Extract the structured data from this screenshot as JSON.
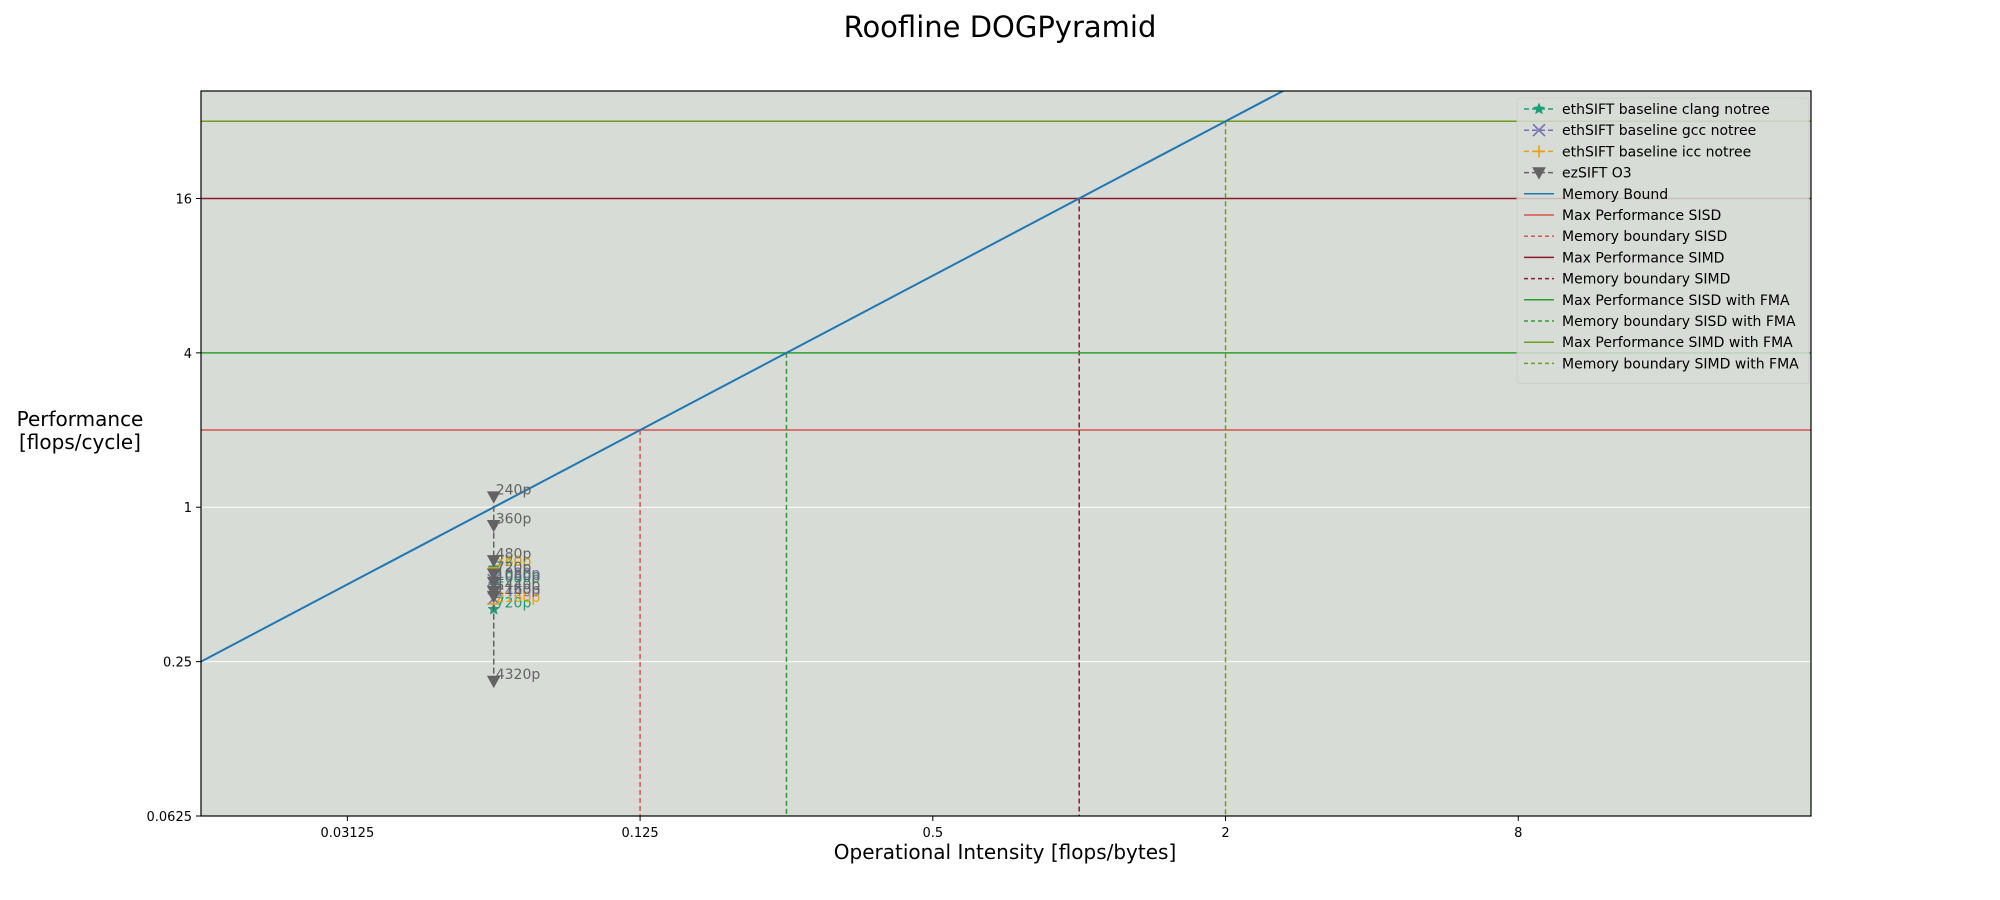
{
  "chart_data": {
    "type": "line",
    "title": "Roofline DOGPyramid",
    "xlabel": "Operational Intensity [flops/bytes]",
    "ylabel": [
      "Performance",
      "[flops/cycle]"
    ],
    "xscale": "log2",
    "yscale": "log2",
    "xlim": [
      0.015625,
      32
    ],
    "ylim": [
      0.0625,
      42
    ],
    "xticks": [
      {
        "v": 0.03125,
        "label": "0.03125"
      },
      {
        "v": 0.125,
        "label": "0.125"
      },
      {
        "v": 0.5,
        "label": "0.5"
      },
      {
        "v": 2,
        "label": "2"
      },
      {
        "v": 8,
        "label": "8"
      }
    ],
    "yticks": [
      {
        "v": 0.0625,
        "label": "0.0625"
      },
      {
        "v": 0.25,
        "label": "0.25"
      },
      {
        "v": 1,
        "label": "1"
      },
      {
        "v": 4,
        "label": "4"
      },
      {
        "v": 16,
        "label": "16"
      }
    ],
    "grid": "horizontal",
    "legend_position": "top-right",
    "colors": {
      "background": "#d7dcd6",
      "grid": "#ffffff"
    },
    "series": [
      {
        "name": "ethSIFT baseline clang notree",
        "color": "#1b9e77",
        "marker": "star",
        "x": 0.0625,
        "points": [
          {
            "y": 0.58,
            "label": "720p"
          },
          {
            "y": 0.5,
            "label": "1080p"
          },
          {
            "y": 0.4,
            "label": "720p"
          }
        ]
      },
      {
        "name": "ethSIFT baseline gcc notree",
        "color": "#7570b3",
        "marker": "x",
        "x": 0.0625,
        "points": [
          {
            "y": 0.52,
            "label": "1080p"
          },
          {
            "y": 0.44,
            "label": "1440p"
          }
        ]
      },
      {
        "name": "ethSIFT baseline icc notree",
        "color": "#e6a010",
        "marker": "plus",
        "x": 0.0625,
        "points": [
          {
            "y": 0.58,
            "label": "360p"
          },
          {
            "y": 0.42,
            "label": "2160p"
          }
        ]
      },
      {
        "name": "ezSIFT O3",
        "color": "#636363",
        "marker": "triangle-down",
        "x": 0.0625,
        "points": [
          {
            "y": 1.1,
            "label": "240p"
          },
          {
            "y": 0.85,
            "label": "360p"
          },
          {
            "y": 0.62,
            "label": "480p"
          },
          {
            "y": 0.55,
            "label": "720p"
          },
          {
            "y": 0.51,
            "label": "1080p"
          },
          {
            "y": 0.47,
            "label": "1440p"
          },
          {
            "y": 0.45,
            "label": "2160p"
          },
          {
            "y": 0.21,
            "label": "4320p"
          }
        ]
      }
    ],
    "roofline": {
      "memory_bound": {
        "name": "Memory Bound",
        "color": "#1f77b4",
        "flops_per_byte": 16
      },
      "ceilings": [
        {
          "name": "Max Performance SISD",
          "boundary": "Memory boundary SISD",
          "value": 2,
          "color": "#d9534f"
        },
        {
          "name": "Max Performance SIMD",
          "boundary": "Memory boundary SIMD",
          "value": 16,
          "color": "#8b1a2b"
        },
        {
          "name": "Max Performance SISD with FMA",
          "boundary": "Memory boundary SISD with FMA",
          "value": 4,
          "color": "#2ca02c"
        },
        {
          "name": "Max Performance SIMD with FMA",
          "boundary": "Memory boundary SIMD with FMA",
          "value": 32,
          "color": "#6f9d1c"
        }
      ]
    },
    "legend": [
      {
        "label": "ethSIFT baseline clang notree",
        "kind": "marker",
        "color": "#1b9e77",
        "marker": "star"
      },
      {
        "label": "ethSIFT baseline gcc notree",
        "kind": "marker",
        "color": "#7570b3",
        "marker": "x"
      },
      {
        "label": "ethSIFT baseline icc notree",
        "kind": "marker",
        "color": "#e6a010",
        "marker": "plus"
      },
      {
        "label": "ezSIFT O3",
        "kind": "marker",
        "color": "#636363",
        "marker": "triangle-down"
      },
      {
        "label": "Memory Bound",
        "kind": "solid",
        "color": "#1f77b4"
      },
      {
        "label": "Max Performance SISD",
        "kind": "solid",
        "color": "#d9534f"
      },
      {
        "label": "Memory boundary SISD",
        "kind": "dashed",
        "color": "#d9534f"
      },
      {
        "label": "Max Performance SIMD",
        "kind": "solid",
        "color": "#8b1a2b"
      },
      {
        "label": "Memory boundary SIMD",
        "kind": "dashed",
        "color": "#8b1a2b"
      },
      {
        "label": "Max Performance SISD with FMA",
        "kind": "solid",
        "color": "#2ca02c"
      },
      {
        "label": "Memory boundary SISD with FMA",
        "kind": "dashed",
        "color": "#2ca02c"
      },
      {
        "label": "Max Performance SIMD with FMA",
        "kind": "solid",
        "color": "#6f9d1c"
      },
      {
        "label": "Memory boundary SIMD with FMA",
        "kind": "dashed",
        "color": "#6f9d1c"
      }
    ]
  }
}
